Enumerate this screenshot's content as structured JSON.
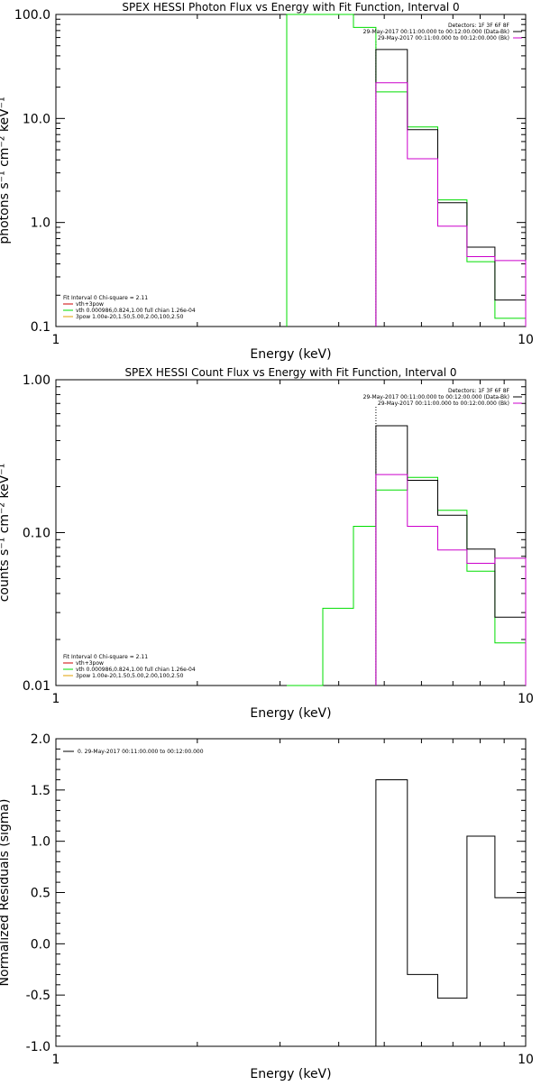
{
  "colors": {
    "background": "#ffffff",
    "axes": "#000000",
    "black_series": "#000000",
    "green_series": "#00dd00",
    "magenta_series": "#cc00cc",
    "red_series": "#cc0000",
    "orange_series": "#e0a000"
  },
  "chart_data": [
    {
      "type": "line",
      "step": true,
      "title": "SPEX HESSI Photon Flux vs Energy with Fit Function, Interval 0",
      "xlabel": "Energy (keV)",
      "ylabel": "photons s⁻¹ cm⁻² keV⁻¹",
      "xscale": "log",
      "yscale": "log",
      "xlim": [
        1,
        10
      ],
      "ylim": [
        0.1,
        100
      ],
      "xticks": [
        1,
        10
      ],
      "xtick_labels": [
        "1",
        "10"
      ],
      "yticks": [
        0.1,
        1,
        10,
        100
      ],
      "ytick_labels": [
        "0.1",
        "1.0",
        "10.0",
        "100.0"
      ],
      "vline_x": 4.8,
      "info_right": [
        "Detectors: 1F 3F 6F 8F",
        "29-May-2017 00:11:00.000 to 00:12:00.000 (Data-Bk)",
        "29-May-2017 00:11:00.000 to 00:12:00.000 (Bk)"
      ],
      "info_left": [
        "Fit Interval 0   Chi-square = 2.11",
        "vth+3pow",
        "vth 0.000986,0.824,1.00  full chian 1.26e-04",
        "3pow 1.00e-20,1.50,5.00,2.00,100,2.50"
      ],
      "series": [
        {
          "color": "black",
          "edges": [
            4.8,
            5.6,
            6.5,
            7.5,
            8.6,
            10.0
          ],
          "values": [
            46,
            7.8,
            1.55,
            0.58,
            0.18
          ]
        },
        {
          "color": "magenta",
          "edges": [
            4.8,
            5.6,
            6.5,
            7.5,
            8.6,
            10.0
          ],
          "values": [
            22,
            4.1,
            0.92,
            0.47,
            0.43
          ]
        },
        {
          "color": "green",
          "edges": [
            3.1,
            3.7,
            4.3,
            4.8,
            5.6,
            6.5,
            7.5,
            8.6,
            10.0
          ],
          "values": [
            100,
            100,
            75,
            18,
            8.3,
            1.65,
            0.42,
            0.12
          ]
        }
      ]
    },
    {
      "type": "line",
      "step": true,
      "title": "SPEX HESSI Count Flux vs Energy with Fit Function, Interval 0",
      "xlabel": "Energy (keV)",
      "ylabel": "counts s⁻¹ cm⁻² keV⁻¹",
      "xscale": "log",
      "yscale": "log",
      "xlim": [
        1,
        10
      ],
      "ylim": [
        0.01,
        1
      ],
      "xticks": [
        1,
        10
      ],
      "xtick_labels": [
        "1",
        "10"
      ],
      "yticks": [
        0.01,
        0.1,
        1
      ],
      "ytick_labels": [
        "0.01",
        "0.10",
        "1.00"
      ],
      "vline_x": 4.8,
      "info_right": [
        "Detectors: 1F 3F 6F 8F",
        "29-May-2017 00:11:00.000 to 00:12:00.000 (Data-Bk)",
        "29-May-2017 00:11:00.000 to 00:12:00.000 (Bk)"
      ],
      "info_left": [
        "Fit Interval 0   Chi-square = 2.11",
        "vth+3pow",
        "vth 0.000986,0.824,1.00  full chian 1.26e-04",
        "3pow 1.00e-20,1.50,5.00,2.00,100,2.50"
      ],
      "series": [
        {
          "color": "black",
          "edges": [
            4.8,
            5.6,
            6.5,
            7.5,
            8.6,
            10.0
          ],
          "values": [
            0.5,
            0.22,
            0.13,
            0.078,
            0.028
          ]
        },
        {
          "color": "magenta",
          "edges": [
            4.8,
            5.6,
            6.5,
            7.5,
            8.6,
            10.0
          ],
          "values": [
            0.24,
            0.11,
            0.077,
            0.063,
            0.068
          ]
        },
        {
          "color": "green",
          "edges": [
            3.1,
            3.7,
            4.3,
            4.8,
            5.6,
            6.5,
            7.5,
            8.6,
            10.0
          ],
          "values": [
            0.0095,
            0.032,
            0.11,
            0.19,
            0.23,
            0.14,
            0.056,
            0.019
          ]
        }
      ]
    },
    {
      "type": "line",
      "step": true,
      "title": "",
      "xlabel": "Energy (keV)",
      "ylabel": "Normalized Residuals (sigma)",
      "xscale": "log",
      "yscale": "linear",
      "xlim": [
        1,
        10
      ],
      "ylim": [
        -1.0,
        2.0
      ],
      "xticks": [
        1,
        10
      ],
      "xtick_labels": [
        "1",
        "10"
      ],
      "yticks": [
        -1.0,
        -0.5,
        0.0,
        0.5,
        1.0,
        1.5,
        2.0
      ],
      "ytick_labels": [
        "-1.0",
        "-0.5",
        "0.0",
        "0.5",
        "1.0",
        "1.5",
        "2.0"
      ],
      "legend": [
        "0. 29-May-2017 00:11:00.000 to 00:12:00.000"
      ],
      "series": [
        {
          "color": "black",
          "edges": [
            4.8,
            5.6,
            6.5,
            7.5,
            8.6,
            10.0
          ],
          "values": [
            1.6,
            -0.3,
            -0.53,
            1.05,
            0.45
          ]
        }
      ]
    }
  ]
}
